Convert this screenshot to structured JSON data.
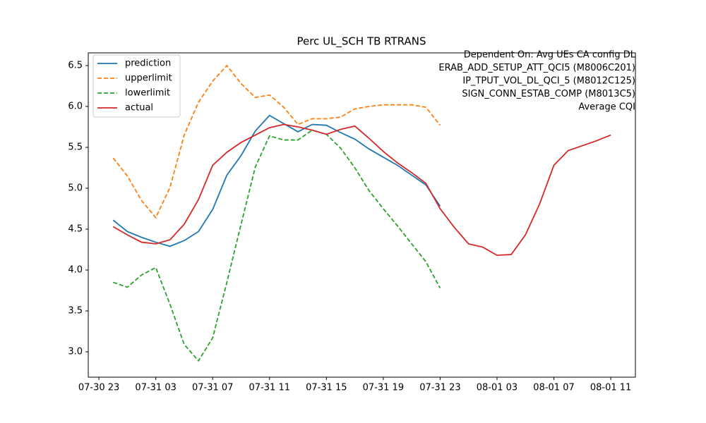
{
  "chart_data": {
    "type": "line",
    "title": "Perc UL_SCH TB RTRANS",
    "annotation": [
      "Dependent On: Avg UEs CA config DL",
      "ERAB_ADD_SETUP_ATT_QCI5 (M8006C201)",
      "IP_TPUT_VOL_DL_QCI_5 (M8012C125)",
      "SIGN_CONN_ESTAB_COMP (M8013C5)",
      "Average CQI"
    ],
    "x": [
      "07-31 00",
      "07-31 01",
      "07-31 02",
      "07-31 03",
      "07-31 04",
      "07-31 05",
      "07-31 06",
      "07-31 07",
      "07-31 08",
      "07-31 09",
      "07-31 10",
      "07-31 11",
      "07-31 12",
      "07-31 13",
      "07-31 14",
      "07-31 15",
      "07-31 16",
      "07-31 17",
      "07-31 18",
      "07-31 19",
      "07-31 20",
      "07-31 21",
      "07-31 22",
      "07-31 23",
      "08-01 00",
      "08-01 01",
      "08-01 02",
      "08-01 03",
      "08-01 04",
      "08-01 05",
      "08-01 06",
      "08-01 07",
      "08-01 08",
      "08-01 09",
      "08-01 10",
      "08-01 11"
    ],
    "series": [
      {
        "name": "prediction",
        "color": "#1f77b4",
        "dash": false,
        "values": [
          4.61,
          4.47,
          4.4,
          4.34,
          4.29,
          4.36,
          4.47,
          4.74,
          5.16,
          5.4,
          5.7,
          5.89,
          5.79,
          5.69,
          5.78,
          5.77,
          5.68,
          5.6,
          5.48,
          5.38,
          5.28,
          5.16,
          5.04,
          4.78,
          null,
          null,
          null,
          null,
          null,
          null,
          null,
          null,
          null,
          null,
          null,
          null
        ]
      },
      {
        "name": "upperlimit",
        "color": "#ff7f0e",
        "dash": true,
        "values": [
          5.37,
          5.15,
          4.85,
          4.64,
          5.01,
          5.65,
          6.05,
          6.31,
          6.5,
          6.28,
          6.11,
          6.14,
          5.99,
          5.78,
          5.85,
          5.85,
          5.87,
          5.97,
          6.0,
          6.02,
          6.02,
          6.02,
          5.99,
          5.77,
          null,
          null,
          null,
          null,
          null,
          null,
          null,
          null,
          null,
          null,
          null,
          null
        ]
      },
      {
        "name": "lowerlimit",
        "color": "#2ca02c",
        "dash": true,
        "values": [
          3.85,
          3.79,
          3.94,
          4.03,
          3.58,
          3.09,
          2.89,
          3.17,
          3.85,
          4.56,
          5.26,
          5.64,
          5.59,
          5.59,
          5.71,
          5.66,
          5.49,
          5.25,
          4.97,
          4.75,
          4.54,
          4.32,
          4.1,
          3.78,
          null,
          null,
          null,
          null,
          null,
          null,
          null,
          null,
          null,
          null,
          null,
          null
        ]
      },
      {
        "name": "actual",
        "color": "#d62728",
        "dash": false,
        "values": [
          4.53,
          4.43,
          4.34,
          4.32,
          4.37,
          4.56,
          4.86,
          5.28,
          5.44,
          5.56,
          5.65,
          5.74,
          5.78,
          5.75,
          5.71,
          5.66,
          5.72,
          5.76,
          5.61,
          5.45,
          5.31,
          5.19,
          5.06,
          4.75,
          4.52,
          4.32,
          4.28,
          4.18,
          4.19,
          4.43,
          4.81,
          5.28,
          5.46,
          5.52,
          5.58,
          5.65
        ]
      }
    ],
    "xlim": [
      "07-30 22:15",
      "08-01 12:44"
    ],
    "xticks": [
      "07-30 23",
      "07-31 03",
      "07-31 07",
      "07-31 11",
      "07-31 15",
      "07-31 19",
      "07-31 23",
      "08-01 03",
      "08-01 07",
      "08-01 11"
    ],
    "ylim": [
      2.69,
      6.655
    ],
    "yticks": [
      {
        "value": 3,
        "label": "3.0"
      },
      3.5,
      {
        "value": 4,
        "label": "4.0"
      },
      4.5,
      {
        "value": 5,
        "label": "5.0"
      },
      5.5,
      {
        "value": 6,
        "label": "6.0"
      },
      6.5
    ],
    "legend": "upper left"
  }
}
